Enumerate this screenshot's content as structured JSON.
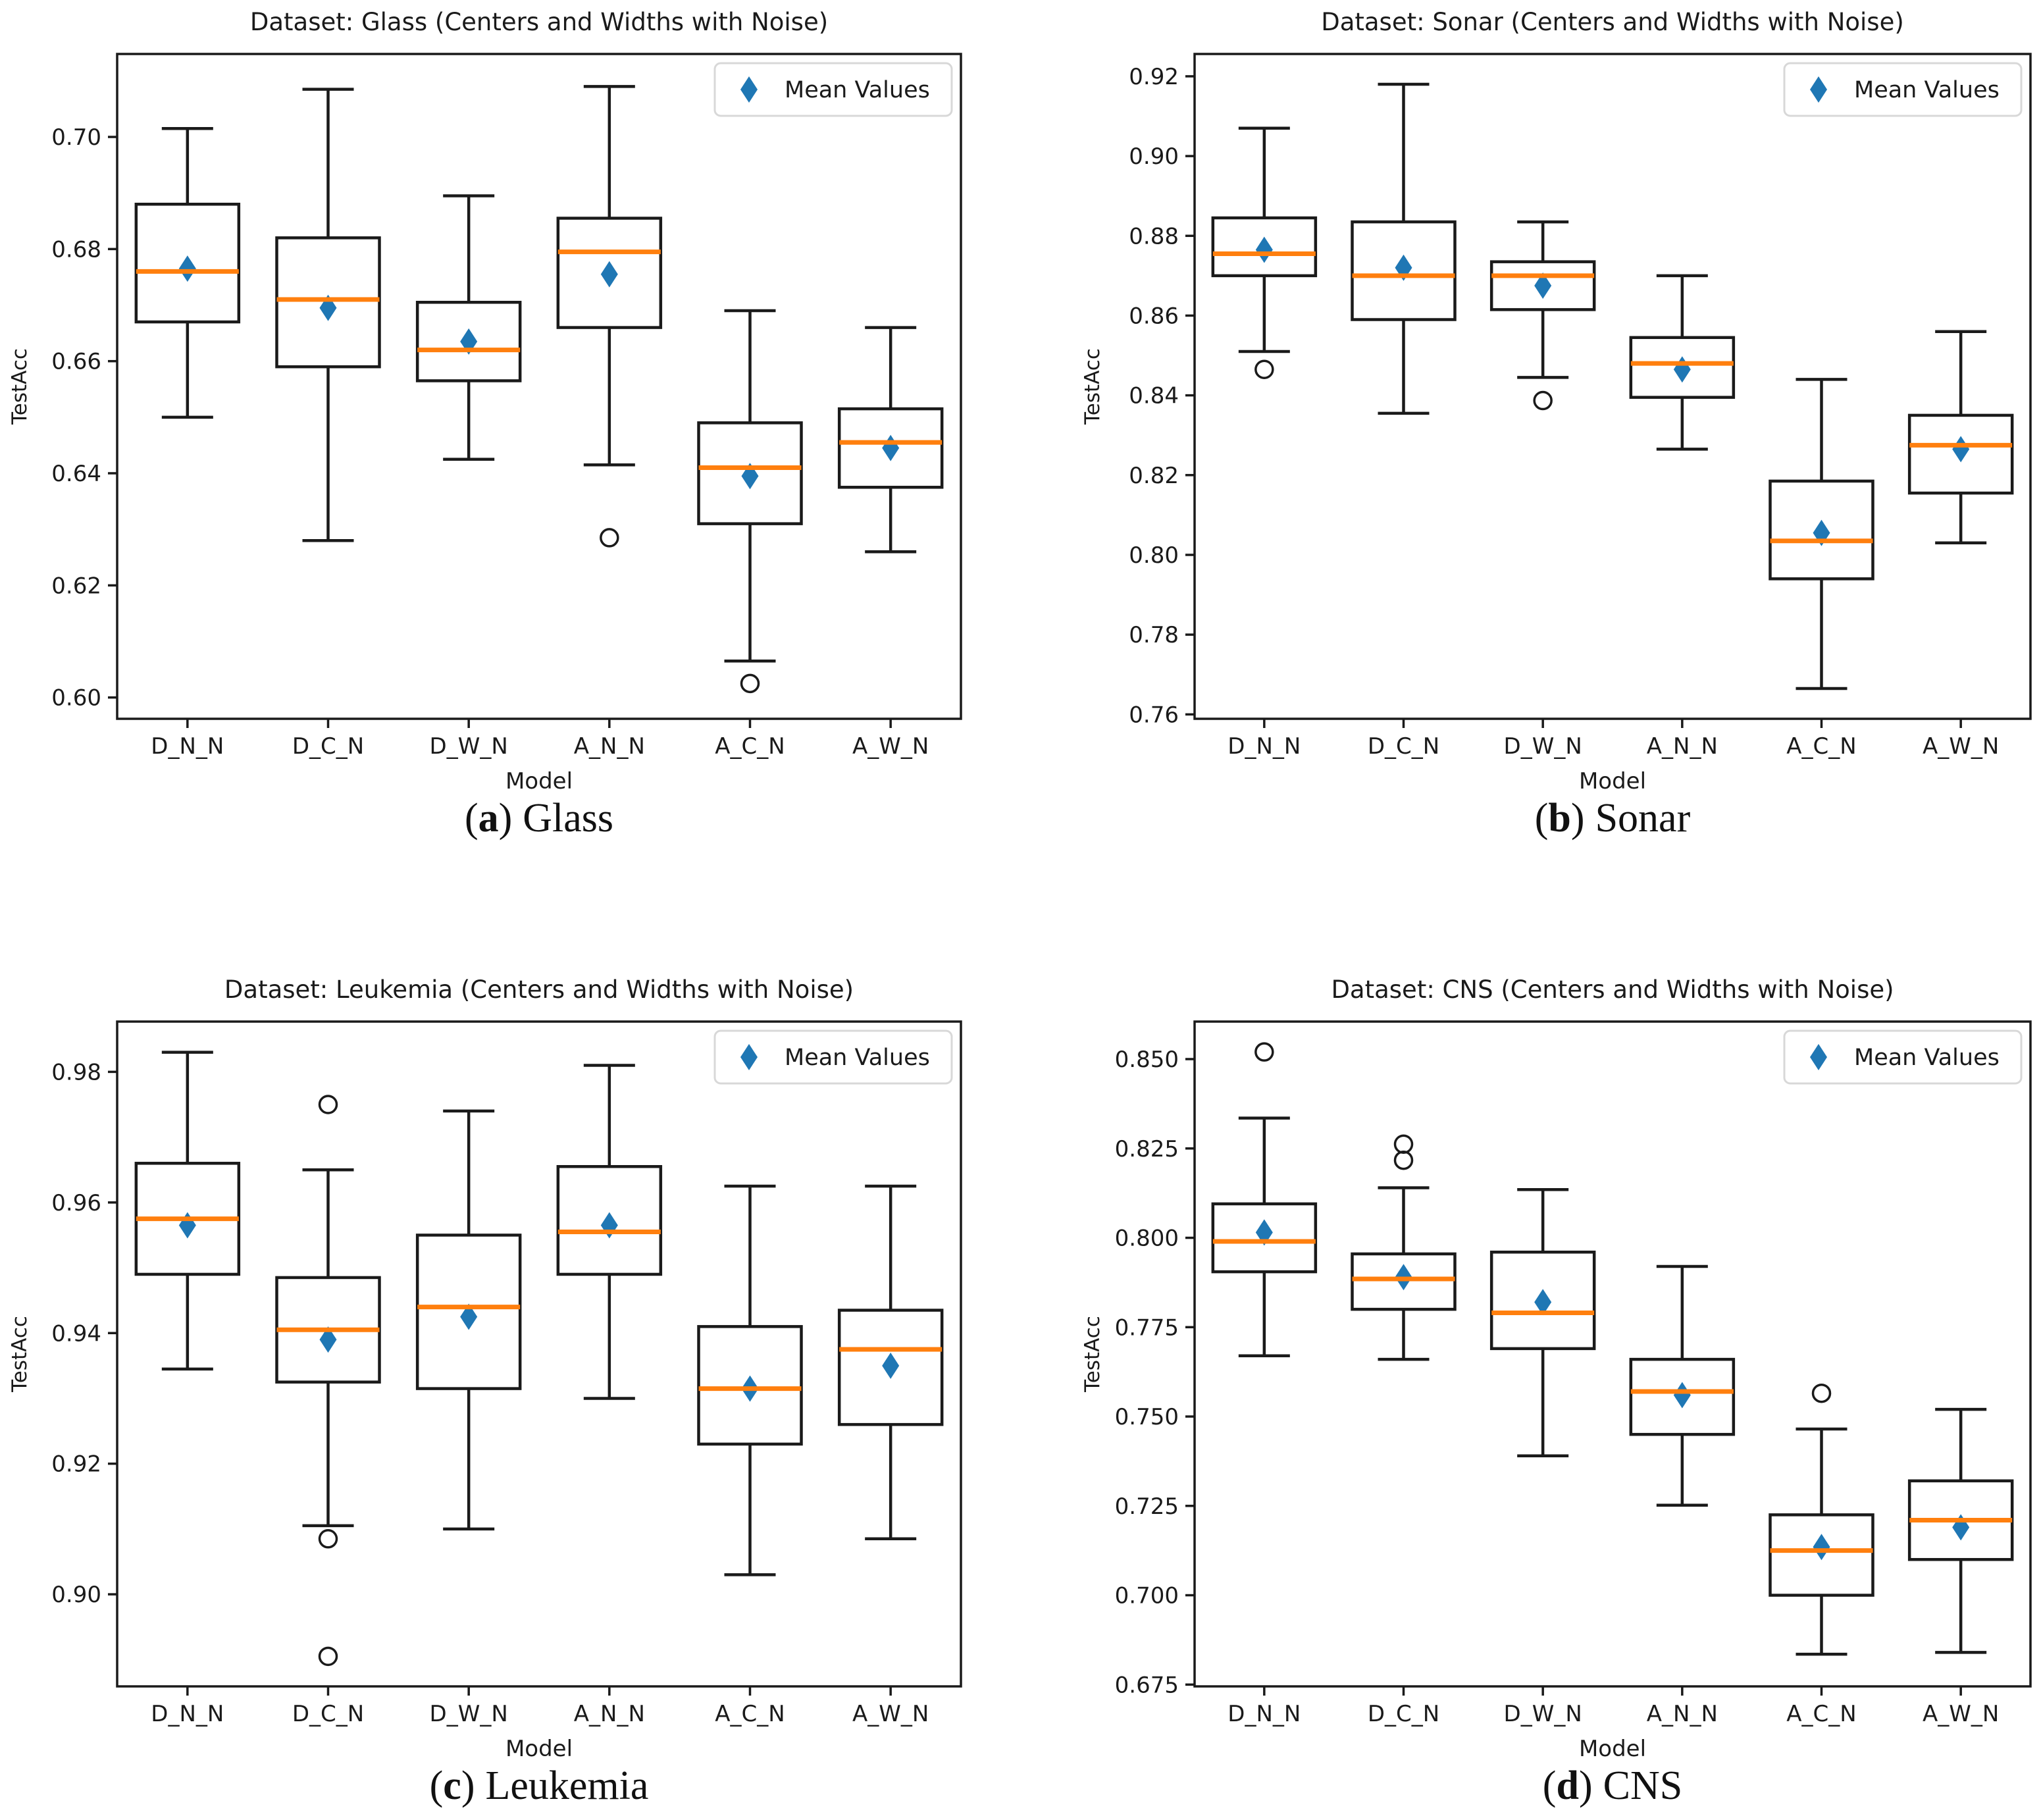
{
  "legend": {
    "label": "Mean Values",
    "marker": "diamond-icon"
  },
  "colors": {
    "box_line": "#1a1a1a",
    "median": "#ff7f0e",
    "mean_marker": "#1f77b4",
    "legend_border": "#d8d8d8",
    "text": "#1a1a1a",
    "background": "#ffffff"
  },
  "chart_data": [
    {
      "type": "boxplot",
      "id": "glass",
      "title": "Dataset: Glass (Centers and Widths with Noise)",
      "xlabel": "Model",
      "ylabel": "TestAcc",
      "caption": {
        "open": "(",
        "letter": "a",
        "close": ")",
        "label": "Glass"
      },
      "categories": [
        "D_N_N",
        "D_C_N",
        "D_W_N",
        "A_N_N",
        "A_C_N",
        "A_W_N"
      ],
      "ylim": [
        0.5962,
        0.7148
      ],
      "ytick_values": [
        0.6,
        0.62,
        0.64,
        0.66,
        0.68,
        0.7
      ],
      "ytick_labels": [
        "0.60",
        "0.62",
        "0.64",
        "0.66",
        "0.68",
        "0.70"
      ],
      "grid": false,
      "legend_position": "upper right",
      "boxes": [
        {
          "whisker_low": 0.65,
          "q1": 0.667,
          "median": 0.676,
          "q3": 0.688,
          "whisker_high": 0.7015,
          "mean": 0.6765,
          "outliers": []
        },
        {
          "whisker_low": 0.628,
          "q1": 0.659,
          "median": 0.671,
          "q3": 0.682,
          "whisker_high": 0.7085,
          "mean": 0.6695,
          "outliers": []
        },
        {
          "whisker_low": 0.6425,
          "q1": 0.6565,
          "median": 0.662,
          "q3": 0.6705,
          "whisker_high": 0.6895,
          "mean": 0.6635,
          "outliers": []
        },
        {
          "whisker_low": 0.6415,
          "q1": 0.666,
          "median": 0.6795,
          "q3": 0.6855,
          "whisker_high": 0.709,
          "mean": 0.6755,
          "outliers": [
            0.6285
          ]
        },
        {
          "whisker_low": 0.6065,
          "q1": 0.631,
          "median": 0.641,
          "q3": 0.649,
          "whisker_high": 0.669,
          "mean": 0.6395,
          "outliers": [
            0.6025
          ]
        },
        {
          "whisker_low": 0.626,
          "q1": 0.6375,
          "median": 0.6455,
          "q3": 0.6515,
          "whisker_high": 0.666,
          "mean": 0.6445,
          "outliers": []
        }
      ]
    },
    {
      "type": "boxplot",
      "id": "sonar",
      "title": "Dataset: Sonar (Centers and Widths with Noise)",
      "xlabel": "Model",
      "ylabel": "TestAcc",
      "caption": {
        "open": "(",
        "letter": "b",
        "close": ")",
        "label": "Sonar"
      },
      "categories": [
        "D_N_N",
        "D_C_N",
        "D_W_N",
        "A_N_N",
        "A_C_N",
        "A_W_N"
      ],
      "ylim": [
        0.7589,
        0.9256
      ],
      "ytick_values": [
        0.76,
        0.78,
        0.8,
        0.82,
        0.84,
        0.86,
        0.88,
        0.9,
        0.92
      ],
      "ytick_labels": [
        "0.76",
        "0.78",
        "0.80",
        "0.82",
        "0.84",
        "0.86",
        "0.88",
        "0.90",
        "0.92"
      ],
      "grid": false,
      "legend_position": "upper right",
      "boxes": [
        {
          "whisker_low": 0.851,
          "q1": 0.87,
          "median": 0.8755,
          "q3": 0.8845,
          "whisker_high": 0.907,
          "mean": 0.8765,
          "outliers": [
            0.8465
          ]
        },
        {
          "whisker_low": 0.8355,
          "q1": 0.859,
          "median": 0.87,
          "q3": 0.8835,
          "whisker_high": 0.918,
          "mean": 0.872,
          "outliers": []
        },
        {
          "whisker_low": 0.8445,
          "q1": 0.8615,
          "median": 0.87,
          "q3": 0.8735,
          "whisker_high": 0.8835,
          "mean": 0.8675,
          "outliers": [
            0.8387
          ]
        },
        {
          "whisker_low": 0.8265,
          "q1": 0.8395,
          "median": 0.848,
          "q3": 0.8545,
          "whisker_high": 0.87,
          "mean": 0.8465,
          "outliers": []
        },
        {
          "whisker_low": 0.7665,
          "q1": 0.794,
          "median": 0.8035,
          "q3": 0.8185,
          "whisker_high": 0.844,
          "mean": 0.8055,
          "outliers": []
        },
        {
          "whisker_low": 0.803,
          "q1": 0.8155,
          "median": 0.8275,
          "q3": 0.835,
          "whisker_high": 0.856,
          "mean": 0.8265,
          "outliers": []
        }
      ]
    },
    {
      "type": "boxplot",
      "id": "leukemia",
      "title": "Dataset: Leukemia (Centers and Widths with Noise)",
      "xlabel": "Model",
      "ylabel": "TestAcc",
      "caption": {
        "open": "(",
        "letter": "c",
        "close": ")",
        "label": "Leukemia"
      },
      "categories": [
        "D_N_N",
        "D_C_N",
        "D_W_N",
        "A_N_N",
        "A_C_N",
        "A_W_N"
      ],
      "ylim": [
        0.8859,
        0.9877
      ],
      "ytick_values": [
        0.9,
        0.92,
        0.94,
        0.96,
        0.98
      ],
      "ytick_labels": [
        "0.90",
        "0.92",
        "0.94",
        "0.96",
        "0.98"
      ],
      "grid": false,
      "legend_position": "upper right",
      "boxes": [
        {
          "whisker_low": 0.9345,
          "q1": 0.949,
          "median": 0.9575,
          "q3": 0.966,
          "whisker_high": 0.983,
          "mean": 0.9565,
          "outliers": []
        },
        {
          "whisker_low": 0.9105,
          "q1": 0.9325,
          "median": 0.9405,
          "q3": 0.9485,
          "whisker_high": 0.965,
          "mean": 0.939,
          "outliers": [
            0.975,
            0.9085,
            0.8905
          ]
        },
        {
          "whisker_low": 0.91,
          "q1": 0.9315,
          "median": 0.944,
          "q3": 0.955,
          "whisker_high": 0.974,
          "mean": 0.9425,
          "outliers": []
        },
        {
          "whisker_low": 0.93,
          "q1": 0.949,
          "median": 0.9555,
          "q3": 0.9655,
          "whisker_high": 0.981,
          "mean": 0.9565,
          "outliers": []
        },
        {
          "whisker_low": 0.903,
          "q1": 0.923,
          "median": 0.9315,
          "q3": 0.941,
          "whisker_high": 0.9625,
          "mean": 0.9315,
          "outliers": []
        },
        {
          "whisker_low": 0.9085,
          "q1": 0.926,
          "median": 0.9375,
          "q3": 0.9435,
          "whisker_high": 0.9625,
          "mean": 0.935,
          "outliers": []
        }
      ]
    },
    {
      "type": "boxplot",
      "id": "cns",
      "title": "Dataset: CNS (Centers and Widths with Noise)",
      "xlabel": "Model",
      "ylabel": "TestAcc",
      "caption": {
        "open": "(",
        "letter": "d",
        "close": ")",
        "label": "CNS"
      },
      "categories": [
        "D_N_N",
        "D_C_N",
        "D_W_N",
        "A_N_N",
        "A_C_N",
        "A_W_N"
      ],
      "ylim": [
        0.6745,
        0.8605
      ],
      "ytick_values": [
        0.675,
        0.7,
        0.725,
        0.75,
        0.775,
        0.8,
        0.825,
        0.85
      ],
      "ytick_labels": [
        "0.675",
        "0.700",
        "0.725",
        "0.750",
        "0.775",
        "0.800",
        "0.825",
        "0.850"
      ],
      "grid": false,
      "legend_position": "upper right",
      "boxes": [
        {
          "whisker_low": 0.767,
          "q1": 0.7905,
          "median": 0.799,
          "q3": 0.8095,
          "whisker_high": 0.8335,
          "mean": 0.8015,
          "outliers": [
            0.852
          ]
        },
        {
          "whisker_low": 0.766,
          "q1": 0.78,
          "median": 0.7885,
          "q3": 0.7955,
          "whisker_high": 0.814,
          "mean": 0.789,
          "outliers": [
            0.8262,
            0.8217
          ]
        },
        {
          "whisker_low": 0.739,
          "q1": 0.769,
          "median": 0.779,
          "q3": 0.796,
          "whisker_high": 0.8135,
          "mean": 0.782,
          "outliers": []
        },
        {
          "whisker_low": 0.7252,
          "q1": 0.745,
          "median": 0.757,
          "q3": 0.766,
          "whisker_high": 0.792,
          "mean": 0.756,
          "outliers": []
        },
        {
          "whisker_low": 0.6835,
          "q1": 0.7,
          "median": 0.7125,
          "q3": 0.7225,
          "whisker_high": 0.7465,
          "mean": 0.7135,
          "outliers": [
            0.7565
          ]
        },
        {
          "whisker_low": 0.684,
          "q1": 0.71,
          "median": 0.721,
          "q3": 0.732,
          "whisker_high": 0.752,
          "mean": 0.719,
          "outliers": []
        }
      ]
    }
  ]
}
